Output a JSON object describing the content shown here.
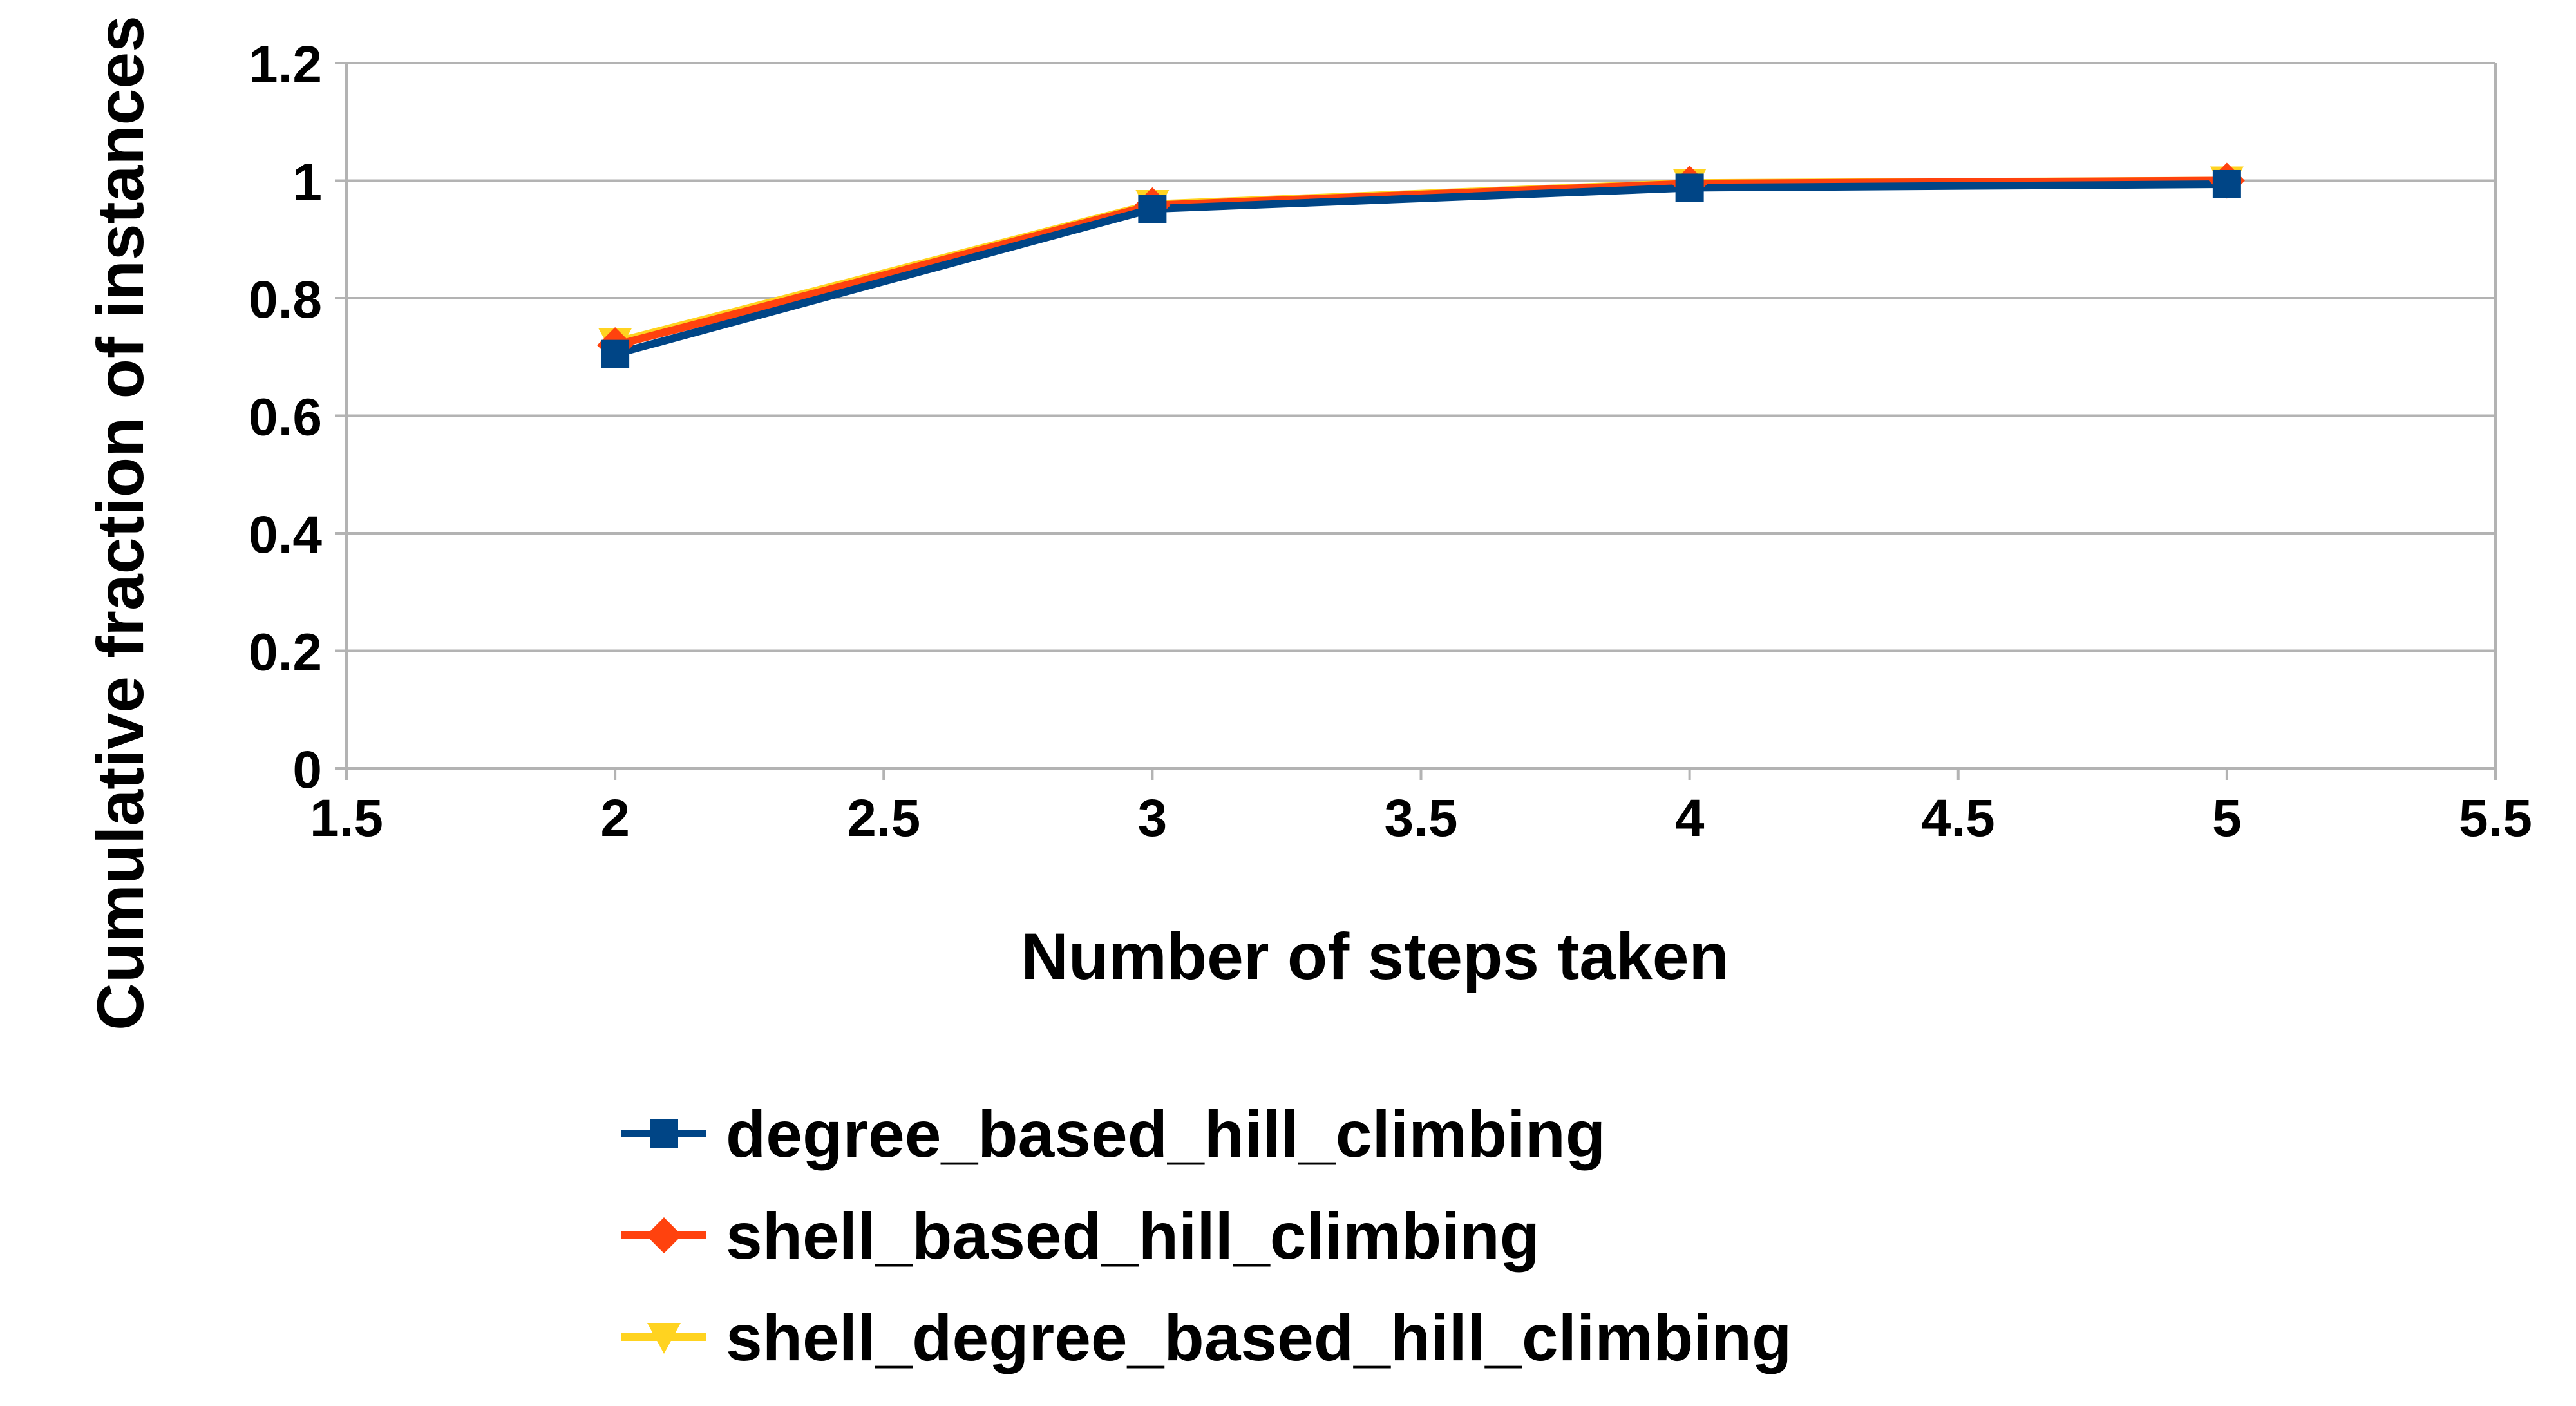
{
  "chart_data": {
    "type": "line",
    "title": "",
    "xlabel": "Number of steps taken",
    "ylabel": "Cumulative fraction of instances",
    "xlim": [
      1.5,
      5.5
    ],
    "ylim": [
      0,
      1.2
    ],
    "x_ticks": [
      1.5,
      2,
      2.5,
      3,
      3.5,
      4,
      4.5,
      5,
      5.5
    ],
    "x_tick_labels": [
      "1.5",
      "2",
      "2.5",
      "3",
      "3.5",
      "4",
      "4.5",
      "5",
      "5.5"
    ],
    "y_ticks": [
      0,
      0.2,
      0.4,
      0.6,
      0.8,
      1,
      1.2
    ],
    "y_tick_labels": [
      "0",
      "0.2",
      "0.4",
      "0.6",
      "0.8",
      "1",
      "1.2"
    ],
    "grid": true,
    "legend_position": "bottom",
    "x": [
      2,
      3,
      4,
      5
    ],
    "series": [
      {
        "name": "degree_based_hill_climbing",
        "values": [
          0.705,
          0.952,
          0.988,
          0.994
        ],
        "color": "#004586",
        "marker": "square"
      },
      {
        "name": "shell_based_hill_climbing",
        "values": [
          0.72,
          0.958,
          0.995,
          1.0
        ],
        "color": "#ff420e",
        "marker": "diamond"
      },
      {
        "name": "shell_degree_based_hill_climbing",
        "values": [
          0.725,
          0.96,
          0.996,
          1.0
        ],
        "color": "#ffd320",
        "marker": "triangle-down"
      }
    ]
  }
}
